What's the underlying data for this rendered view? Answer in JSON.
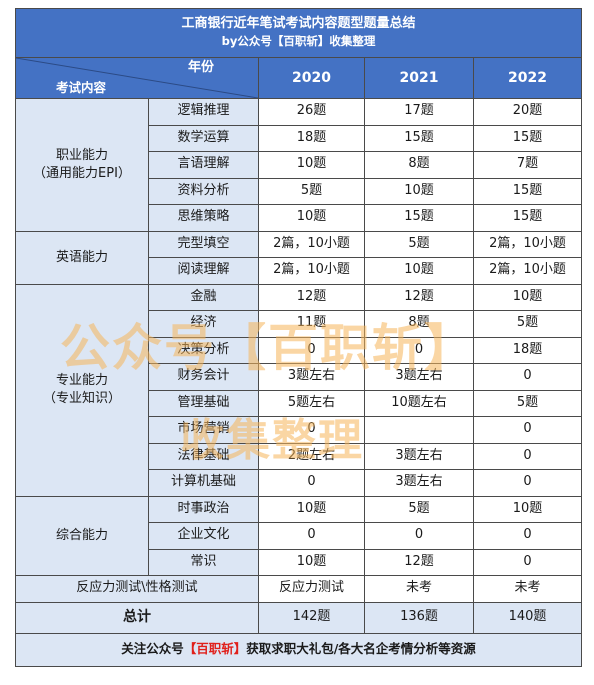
{
  "title": {
    "line1": "工商银行近年笔试考试内容题型题量总结",
    "line2": "by公众号【百职斩】收集整理"
  },
  "header": {
    "year_label": "年份",
    "content_label": "考试内容",
    "years": [
      "2020",
      "2021",
      "2022"
    ]
  },
  "groups": {
    "g0": {
      "name": "职业能力\n（通用能力EPI）"
    },
    "g1": {
      "name": "英语能力"
    },
    "g2": {
      "name": "专业能力\n（专业知识）"
    },
    "g3": {
      "name": "综合能力"
    }
  },
  "rows": [
    {
      "sub": "逻辑推理",
      "v": [
        "26题",
        "17题",
        "20题"
      ]
    },
    {
      "sub": "数学运算",
      "v": [
        "18题",
        "15题",
        "15题"
      ]
    },
    {
      "sub": "言语理解",
      "v": [
        "10题",
        "8题",
        "7题"
      ]
    },
    {
      "sub": "资料分析",
      "v": [
        "5题",
        "10题",
        "15题"
      ]
    },
    {
      "sub": "思维策略",
      "v": [
        "10题",
        "15题",
        "15题"
      ]
    },
    {
      "sub": "完型填空",
      "v": [
        "2篇，10小题",
        "5题",
        "2篇，10小题"
      ]
    },
    {
      "sub": "阅读理解",
      "v": [
        "2篇，10小题",
        "10题",
        "2篇，10小题"
      ]
    },
    {
      "sub": "金融",
      "v": [
        "12题",
        "12题",
        "10题"
      ]
    },
    {
      "sub": "经济",
      "v": [
        "11题",
        "8题",
        "5题"
      ]
    },
    {
      "sub": "决策分析",
      "v": [
        "0",
        "0",
        "18题"
      ]
    },
    {
      "sub": "财务会计",
      "v": [
        "3题左右",
        "3题左右",
        "0"
      ]
    },
    {
      "sub": "管理基础",
      "v": [
        "5题左右",
        "10题左右",
        "5题"
      ]
    },
    {
      "sub": "市场营销",
      "v": [
        "0",
        "",
        "0"
      ]
    },
    {
      "sub": "法律基础",
      "v": [
        "2题左右",
        "3题左右",
        "0"
      ]
    },
    {
      "sub": "计算机基础",
      "v": [
        "0",
        "3题左右",
        "0"
      ]
    },
    {
      "sub": "时事政治",
      "v": [
        "10题",
        "5题",
        "10题"
      ]
    },
    {
      "sub": "企业文化",
      "v": [
        "0",
        "0",
        "0"
      ]
    },
    {
      "sub": "常识",
      "v": [
        "10题",
        "12题",
        "0"
      ]
    },
    {
      "sub": "反应力测试\\性格测试",
      "v": [
        "反应力测试",
        "未考",
        "未考"
      ]
    }
  ],
  "total": {
    "label": "总计",
    "v": [
      "142题",
      "136题",
      "140题"
    ]
  },
  "footer": {
    "pre": "关注公众号",
    "brand": "【百职斩】",
    "post": "获取求职大礼包/各大名企考情分析等资源"
  },
  "watermark": {
    "line1": "公众号【百职斩】",
    "line2": "收集整理"
  },
  "colors": {
    "header_blue": "#4472c4",
    "light_blue": "#dce6f4",
    "footer_red": "#e0201b"
  }
}
